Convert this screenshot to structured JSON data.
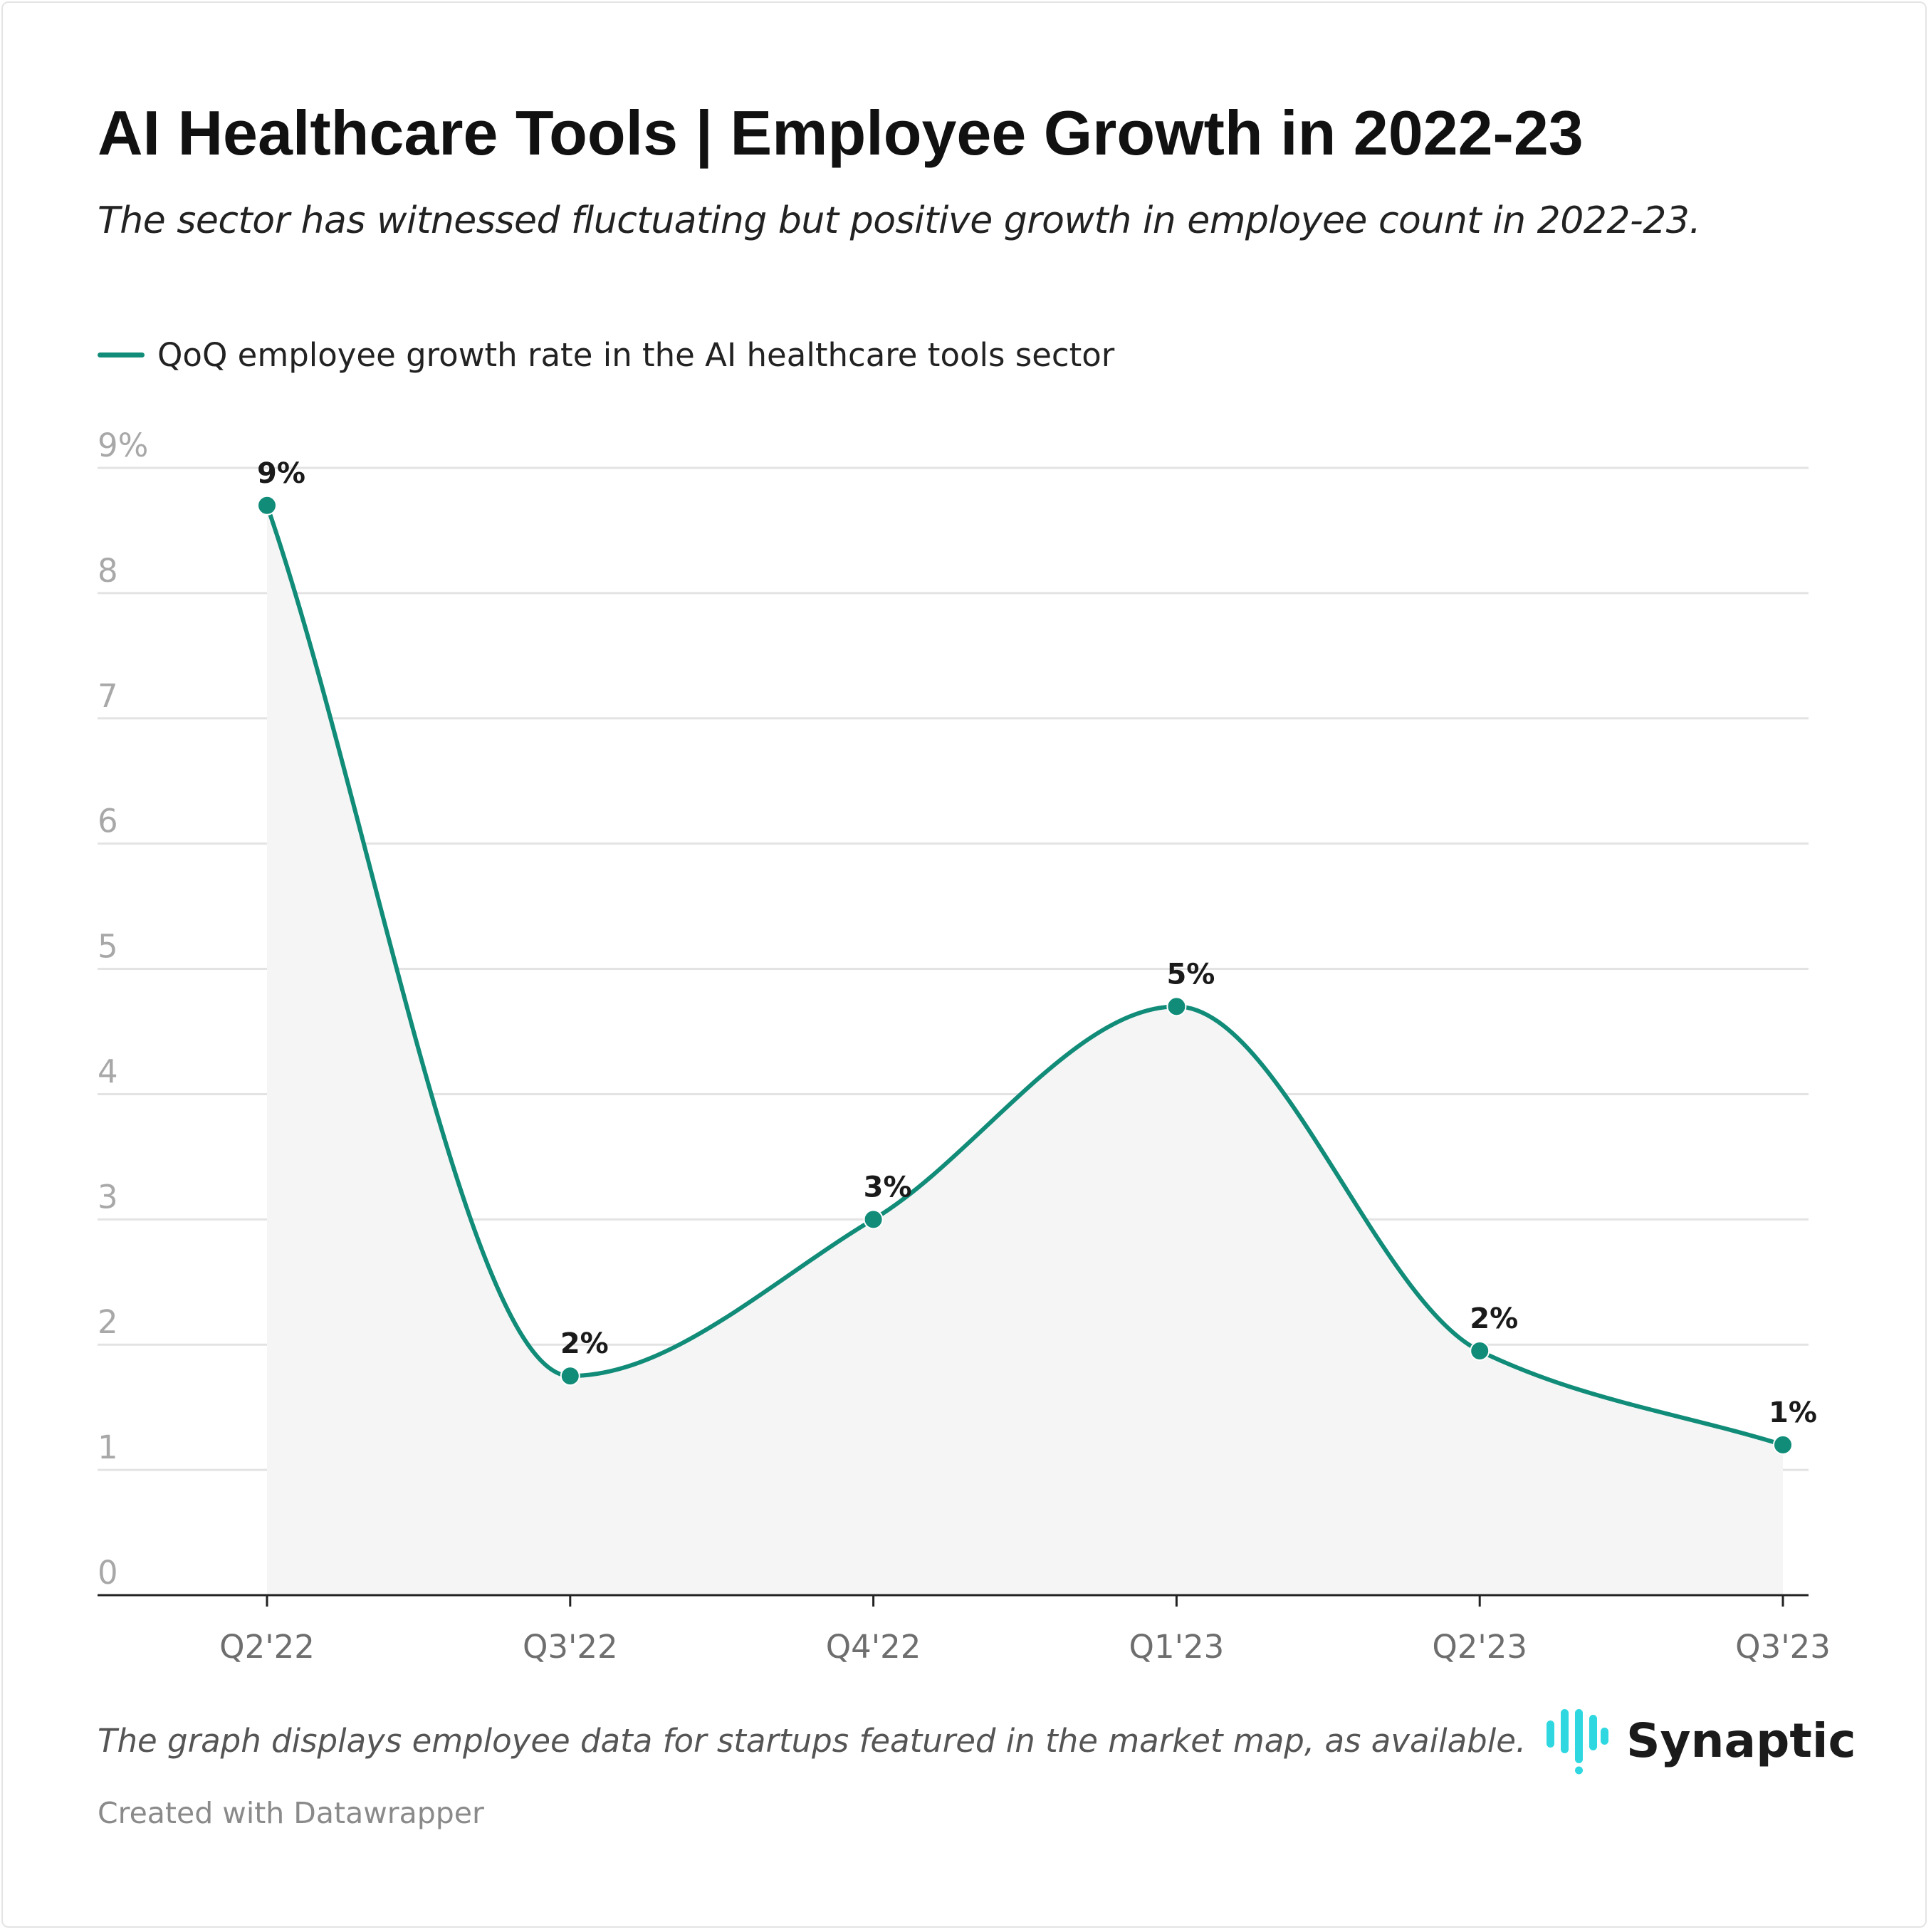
{
  "title": "AI Healthcare Tools | Employee Growth in 2022-23",
  "subtitle": "The sector has witnessed fluctuating but positive growth in employee count in 2022-23.",
  "note": "The graph displays employee data for startups featured in the market map, as available.",
  "credit": "Created with Datawrapper",
  "logo": {
    "name": "Synaptic",
    "icon": "synaptic-logo-icon",
    "color": "#2fd8e0"
  },
  "colors": {
    "line": "#118c79",
    "area": "#f5f5f5",
    "grid": "#e3e3e3",
    "axis": "#222222"
  },
  "chart_data": {
    "type": "line",
    "categories": [
      "Q2'22",
      "Q3'22",
      "Q4'22",
      "Q1'23",
      "Q2'23",
      "Q3'23"
    ],
    "series": [
      {
        "name": "QoQ employee growth rate in the AI healthcare tools sector",
        "values": [
          8.7,
          1.75,
          3.0,
          4.7,
          1.95,
          1.2
        ],
        "labels": [
          "9%",
          "2%",
          "3%",
          "5%",
          "2%",
          "1%"
        ]
      }
    ],
    "ylim": [
      0,
      9
    ],
    "yticks": [
      0,
      1,
      2,
      3,
      4,
      5,
      6,
      7,
      8,
      9
    ],
    "ytick_labels": [
      "0",
      "1",
      "2",
      "3",
      "4",
      "5",
      "6",
      "7",
      "8",
      "9%"
    ],
    "xlabel": "",
    "ylabel": "",
    "grid": true,
    "area_fill": true,
    "curve": "smooth",
    "legend": "top-left"
  }
}
